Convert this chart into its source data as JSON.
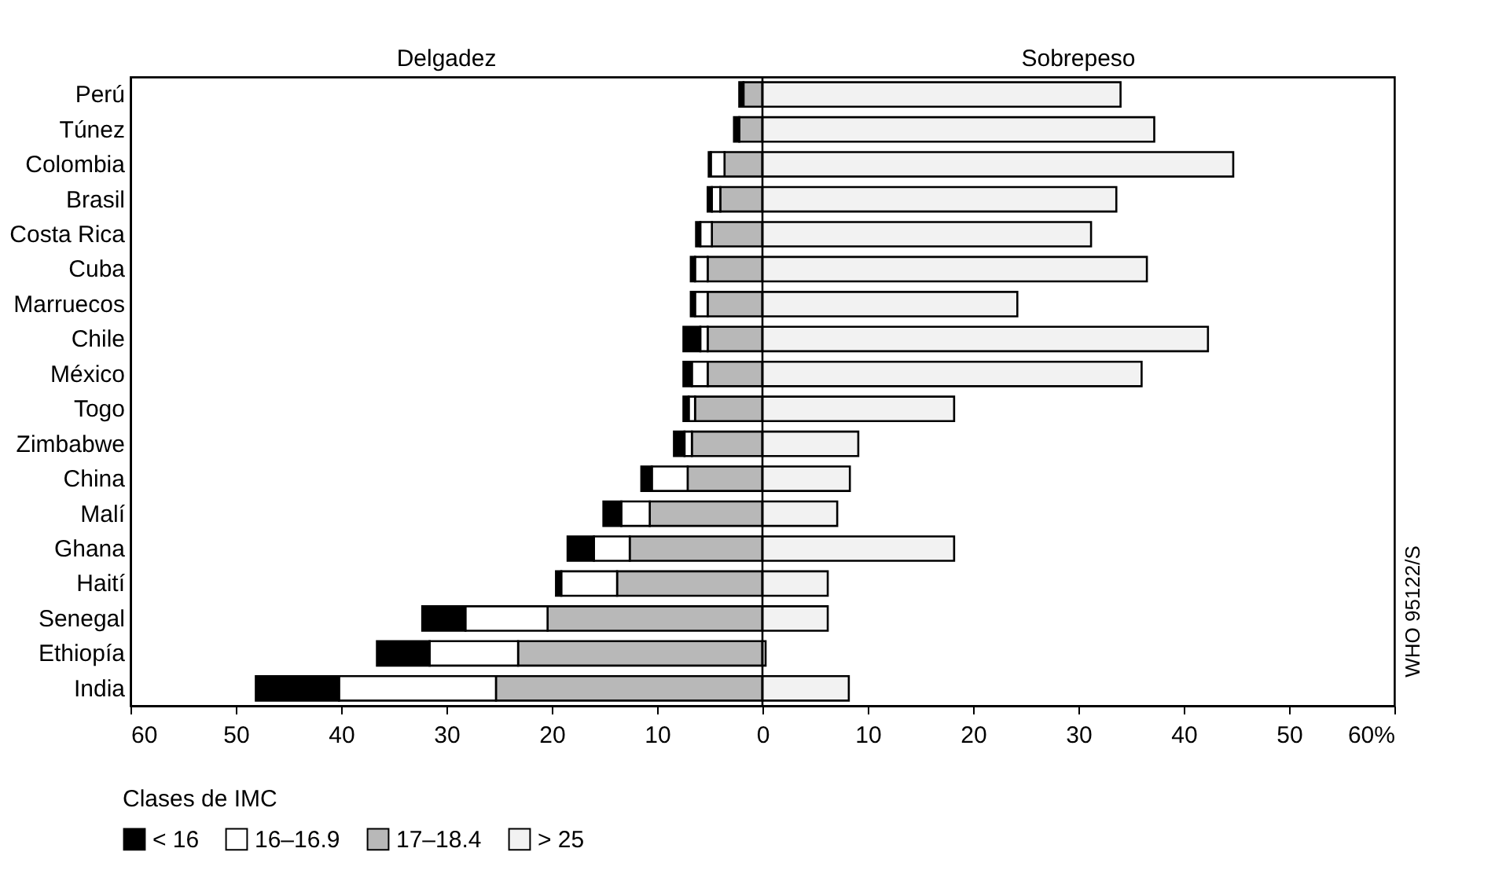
{
  "chart_data": {
    "type": "bar",
    "orientation": "horizontal",
    "stacked": true,
    "categories": [
      "Perú",
      "Túnez",
      "Colombia",
      "Brasil",
      "Costa Rica",
      "Cuba",
      "Marruecos",
      "Chile",
      "México",
      "Togo",
      "Zimbabwe",
      "China",
      "Malí",
      "Ghana",
      "Haití",
      "Senegal",
      "Ethiopía",
      "India"
    ],
    "series": [
      {
        "name": "17–18.4",
        "color": "#b8b8b8",
        "values": [
          -1.8,
          -2.2,
          -3.6,
          -4.0,
          -4.8,
          -5.2,
          -5.2,
          -5.2,
          -5.2,
          -6.4,
          -6.7,
          -7.1,
          -10.7,
          -12.6,
          -13.8,
          -20.4,
          -23.2,
          -25.3
        ]
      },
      {
        "name": "16–16.9",
        "color": "#ffffff",
        "values": [
          null,
          null,
          -1.3,
          -0.8,
          -1.1,
          -1.2,
          -1.2,
          -0.7,
          -1.5,
          -0.6,
          -0.7,
          -3.4,
          -2.7,
          -3.4,
          -5.3,
          -7.8,
          -8.4,
          -14.9
        ]
      },
      {
        "name": "< 16",
        "color": "#000000",
        "values": [
          -0.4,
          -0.5,
          -0.2,
          -0.4,
          -0.4,
          -0.4,
          -0.4,
          -1.6,
          -0.8,
          -0.5,
          -1.0,
          -1.0,
          -1.7,
          -2.5,
          -0.5,
          -4.1,
          -5.0,
          -7.9
        ]
      },
      {
        "name": "> 25",
        "color": "#f2f2f2",
        "values": [
          34,
          37.2,
          44.7,
          33.6,
          31.2,
          36.5,
          24.2,
          42.3,
          36,
          18.2,
          9.1,
          8.3,
          7.1,
          18.2,
          6.2,
          6.2,
          0.3,
          8.2
        ]
      }
    ],
    "xlim": [
      -60,
      60
    ],
    "xticks": [
      {
        "value": -60,
        "label": "60"
      },
      {
        "value": -50,
        "label": "50"
      },
      {
        "value": -40,
        "label": "40"
      },
      {
        "value": -30,
        "label": "30"
      },
      {
        "value": -20,
        "label": "20"
      },
      {
        "value": -10,
        "label": "10"
      },
      0,
      10,
      20,
      30,
      40,
      50,
      {
        "value": 60,
        "label": "60%"
      }
    ],
    "ref_lines": [
      {
        "axis": "x",
        "value": 0
      }
    ],
    "legend": "bottom left",
    "legend_title": "Clases de IMC",
    "annotations": [
      "Delgadez",
      "Sobrepeso",
      "WHO 95122/S"
    ]
  }
}
